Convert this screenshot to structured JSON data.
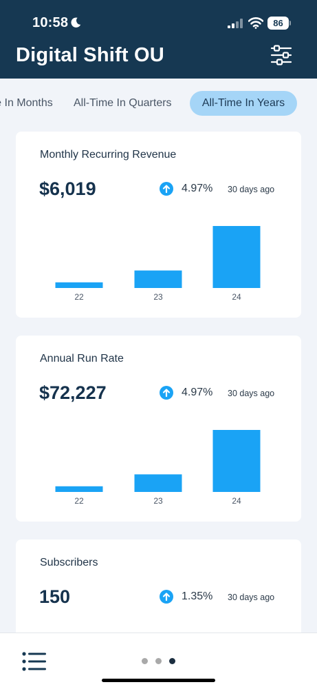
{
  "status_bar": {
    "time": "10:58",
    "battery": "86",
    "icons": [
      "moon-icon",
      "signal-icon",
      "wifi-icon",
      "battery-icon"
    ]
  },
  "header": {
    "title": "Digital Shift OU",
    "filter_icon": "sliders-icon"
  },
  "tabs": [
    {
      "label": "All-Time In Months",
      "active": false
    },
    {
      "label": "All-Time In Quarters",
      "active": false
    },
    {
      "label": "All-Time In Years",
      "active": true
    }
  ],
  "colors": {
    "header_bg": "#163852",
    "accent": "#1aa3f5",
    "tab_active_bg": "#a5d5f7",
    "page_bg": "#f1f4f9"
  },
  "cards": [
    {
      "title": "Monthly Recurring Revenue",
      "value": "$6,019",
      "change": "4.97%",
      "period": "30 days ago",
      "trend_icon": "arrow-up-circle-icon",
      "chart_data": {
        "type": "bar",
        "categories": [
          "22",
          "23",
          "24"
        ],
        "values": [
          550,
          1700,
          6019
        ],
        "ylim": [
          0,
          6019
        ]
      }
    },
    {
      "title": "Annual Run Rate",
      "value": "$72,227",
      "change": "4.97%",
      "period": "30 days ago",
      "trend_icon": "arrow-up-circle-icon",
      "chart_data": {
        "type": "bar",
        "categories": [
          "22",
          "23",
          "24"
        ],
        "values": [
          6600,
          20500,
          72227
        ],
        "ylim": [
          0,
          72227
        ]
      }
    },
    {
      "title": "Subscribers",
      "value": "150",
      "change": "1.35%",
      "period": "30 days ago",
      "trend_icon": "arrow-up-circle-icon"
    }
  ],
  "bottom_bar": {
    "menu_icon": "list-menu-icon",
    "page_count": 3,
    "active_page": 3
  }
}
